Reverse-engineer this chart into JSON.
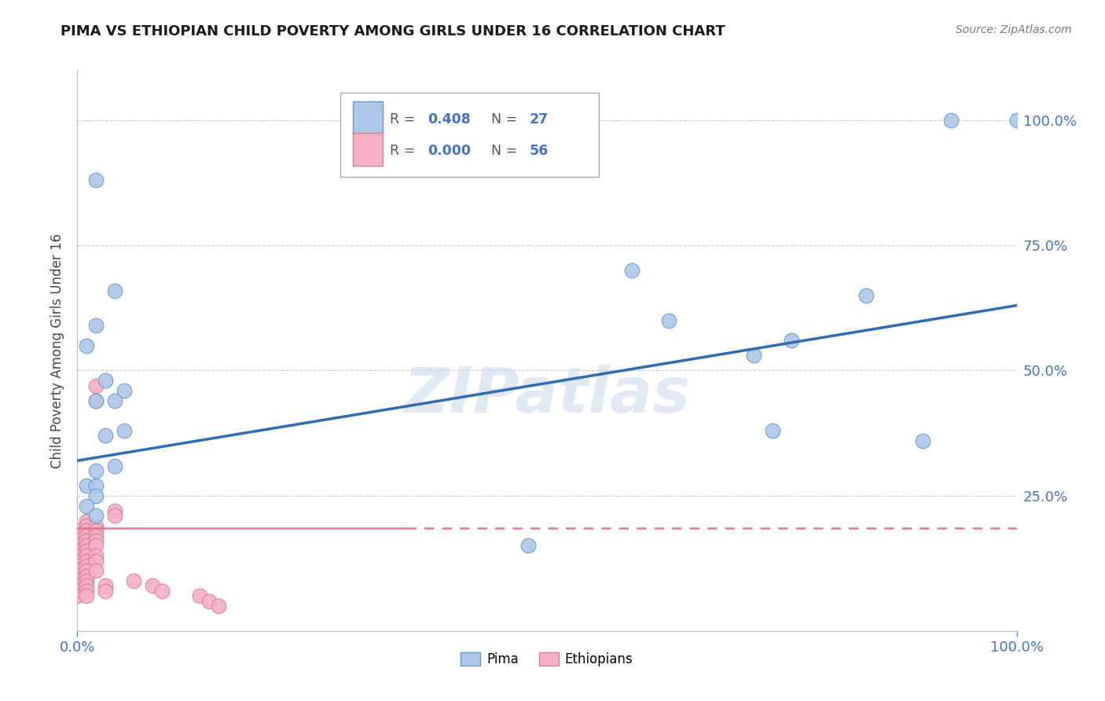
{
  "title": "PIMA VS ETHIOPIAN CHILD POVERTY AMONG GIRLS UNDER 16 CORRELATION CHART",
  "source": "Source: ZipAtlas.com",
  "ylabel": "Child Poverty Among Girls Under 16",
  "pima_R": "0.408",
  "pima_N": "27",
  "ethiopian_R": "0.000",
  "ethiopian_N": "56",
  "pima_color": "#aec6e8",
  "pima_edge_color": "#5b9bd5",
  "ethiopian_color": "#f4b0c4",
  "ethiopian_edge_color": "#e07898",
  "trend_pima_color": "#2e6db4",
  "trend_ethiopian_color": "#e07898",
  "watermark": "ZIPatlas",
  "pima_points": [
    [
      0.02,
      0.88
    ],
    [
      0.04,
      0.66
    ],
    [
      0.02,
      0.59
    ],
    [
      0.01,
      0.55
    ],
    [
      0.03,
      0.48
    ],
    [
      0.05,
      0.46
    ],
    [
      0.02,
      0.44
    ],
    [
      0.04,
      0.44
    ],
    [
      0.03,
      0.37
    ],
    [
      0.05,
      0.38
    ],
    [
      0.02,
      0.3
    ],
    [
      0.04,
      0.31
    ],
    [
      0.01,
      0.27
    ],
    [
      0.02,
      0.27
    ],
    [
      0.02,
      0.25
    ],
    [
      0.01,
      0.23
    ],
    [
      0.02,
      0.21
    ],
    [
      0.48,
      0.15
    ],
    [
      0.59,
      0.7
    ],
    [
      0.63,
      0.6
    ],
    [
      0.72,
      0.53
    ],
    [
      0.74,
      0.38
    ],
    [
      0.76,
      0.56
    ],
    [
      0.84,
      0.65
    ],
    [
      0.9,
      0.36
    ],
    [
      0.93,
      1.0
    ],
    [
      1.0,
      1.0
    ]
  ],
  "ethiopian_points": [
    [
      0.0,
      0.18
    ],
    [
      0.0,
      0.17
    ],
    [
      0.0,
      0.17
    ],
    [
      0.0,
      0.16
    ],
    [
      0.0,
      0.16
    ],
    [
      0.0,
      0.15
    ],
    [
      0.0,
      0.15
    ],
    [
      0.0,
      0.14
    ],
    [
      0.0,
      0.14
    ],
    [
      0.0,
      0.13
    ],
    [
      0.0,
      0.12
    ],
    [
      0.0,
      0.12
    ],
    [
      0.0,
      0.11
    ],
    [
      0.0,
      0.1
    ],
    [
      0.0,
      0.1
    ],
    [
      0.0,
      0.09
    ],
    [
      0.0,
      0.08
    ],
    [
      0.0,
      0.07
    ],
    [
      0.0,
      0.06
    ],
    [
      0.0,
      0.05
    ],
    [
      0.01,
      0.2
    ],
    [
      0.01,
      0.19
    ],
    [
      0.01,
      0.18
    ],
    [
      0.01,
      0.17
    ],
    [
      0.01,
      0.16
    ],
    [
      0.01,
      0.15
    ],
    [
      0.01,
      0.14
    ],
    [
      0.01,
      0.13
    ],
    [
      0.01,
      0.12
    ],
    [
      0.01,
      0.11
    ],
    [
      0.01,
      0.1
    ],
    [
      0.01,
      0.09
    ],
    [
      0.01,
      0.08
    ],
    [
      0.01,
      0.07
    ],
    [
      0.01,
      0.06
    ],
    [
      0.01,
      0.05
    ],
    [
      0.02,
      0.47
    ],
    [
      0.02,
      0.44
    ],
    [
      0.02,
      0.19
    ],
    [
      0.02,
      0.18
    ],
    [
      0.02,
      0.17
    ],
    [
      0.02,
      0.16
    ],
    [
      0.02,
      0.15
    ],
    [
      0.02,
      0.13
    ],
    [
      0.02,
      0.12
    ],
    [
      0.02,
      0.1
    ],
    [
      0.03,
      0.07
    ],
    [
      0.03,
      0.06
    ],
    [
      0.04,
      0.22
    ],
    [
      0.04,
      0.21
    ],
    [
      0.06,
      0.08
    ],
    [
      0.08,
      0.07
    ],
    [
      0.09,
      0.06
    ],
    [
      0.13,
      0.05
    ],
    [
      0.14,
      0.04
    ],
    [
      0.15,
      0.03
    ]
  ],
  "pima_trend_x": [
    0.0,
    1.0
  ],
  "pima_trend_y": [
    0.32,
    0.63
  ],
  "ethiopian_trend_y": 0.185,
  "ethiopian_trend_solid_x": 0.35,
  "xlim": [
    0.0,
    1.0
  ],
  "ylim": [
    -0.02,
    1.1
  ],
  "ytick_positions": [
    0.25,
    0.5,
    0.75,
    1.0
  ],
  "right_ytick_labels": [
    "25.0%",
    "50.0%",
    "75.0%",
    "100.0%"
  ]
}
